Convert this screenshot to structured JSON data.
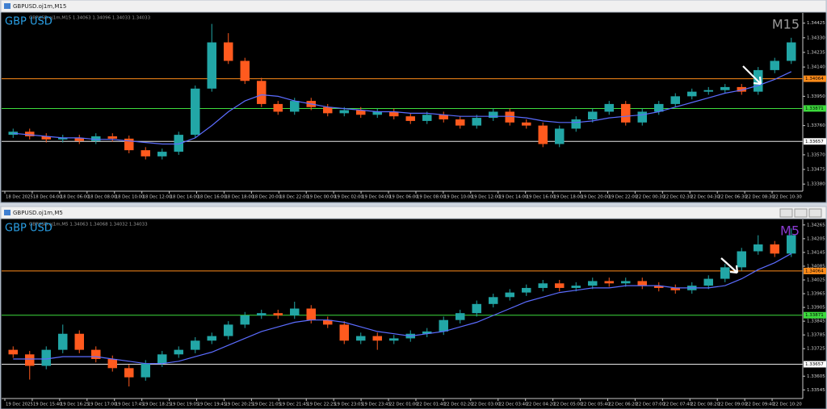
{
  "chart_data": [
    {
      "type": "candlestick",
      "window_title": "GBPUSD.oj1m,M15",
      "info": "GBPUSD.oj1m,M15 1.34063 1.34096 1.34033 1.34033",
      "symbol": "GBP USD",
      "timeframe": "M15",
      "timeframe_color": "#9a9a9a",
      "up_color": "#22a6a6",
      "down_color": "#ff5a1e",
      "ma_color": "#5b6cff",
      "ylim": [
        1.3336,
        1.3446
      ],
      "yticks": [
        1.34425,
        {
          "value": 1.3433,
          "label": "1.34330"
        },
        1.34235,
        {
          "value": 1.3414,
          "label": "1.34140"
        },
        {
          "value": 1.3395,
          "label": "1.33950"
        },
        {
          "value": 1.3376,
          "label": "1.33760"
        },
        {
          "value": 1.3357,
          "label": "1.33570"
        },
        1.33475,
        {
          "value": 1.3338,
          "label": "1.33380"
        }
      ],
      "hlines": [
        {
          "value": 1.34064,
          "color": "#ff8c1a"
        },
        {
          "value": 1.33871,
          "color": "#3ddc3d"
        },
        {
          "value": 1.33657,
          "color": "#e8e8e8"
        }
      ],
      "time_labels": [
        "18 Dec 2025",
        "18 Dec 04:00",
        "18 Dec 06:00",
        "18 Dec 08:00",
        "18 Dec 10:00",
        "18 Dec 12:00",
        "18 Dec 14:00",
        "18 Dec 16:00",
        "18 Dec 18:00",
        "18 Dec 20:00",
        "18 Dec 22:00",
        "19 Dec 00:00",
        "19 Dec 02:00",
        "19 Dec 04:00",
        "19 Dec 06:00",
        "19 Dec 08:00",
        "19 Dec 10:00",
        "19 Dec 12:00",
        "19 Dec 14:00",
        "19 Dec 16:00",
        "19 Dec 18:00",
        "19 Dec 20:00",
        "19 Dec 22:00",
        "22 Dec 00:30",
        "22 Dec 02:30",
        "22 Dec 04:30",
        "22 Dec 06:30",
        "22 Dec 08:30",
        "22 Dec 10:30"
      ],
      "open": [
        1.337,
        1.3372,
        1.3369,
        1.3367,
        1.3368,
        1.3366,
        1.3369,
        1.33675,
        1.336,
        1.3356,
        1.3359,
        1.337,
        1.34,
        1.343,
        1.3418,
        1.3405,
        1.339,
        1.3385,
        1.3392,
        1.3388,
        1.3384,
        1.3386,
        1.3383,
        1.3385,
        1.3382,
        1.3379,
        1.3383,
        1.338,
        1.3376,
        1.3381,
        1.3385,
        1.3378,
        1.3376,
        1.3364,
        1.3374,
        1.338,
        1.3385,
        1.339,
        1.3378,
        1.3385,
        1.339,
        1.3395,
        1.3398,
        1.3399,
        1.3401,
        1.3398,
        1.3412,
        1.3418
      ],
      "high": [
        1.3374,
        1.3374,
        1.3371,
        1.337,
        1.337,
        1.3371,
        1.3371,
        1.33695,
        1.3362,
        1.3361,
        1.3372,
        1.3402,
        1.3442,
        1.3436,
        1.342,
        1.3407,
        1.3392,
        1.3394,
        1.3394,
        1.339,
        1.3388,
        1.3388,
        1.3387,
        1.3387,
        1.3384,
        1.3385,
        1.3385,
        1.3382,
        1.3383,
        1.3387,
        1.3387,
        1.338,
        1.3378,
        1.3376,
        1.3382,
        1.3387,
        1.3392,
        1.3392,
        1.3387,
        1.3392,
        1.3397,
        1.34,
        1.3401,
        1.3403,
        1.3403,
        1.3414,
        1.342,
        1.3433
      ],
      "low": [
        1.3368,
        1.3367,
        1.3365,
        1.3365,
        1.3364,
        1.3364,
        1.33655,
        1.3358,
        1.3354,
        1.3354,
        1.3357,
        1.3368,
        1.3398,
        1.3416,
        1.3403,
        1.3388,
        1.3383,
        1.3383,
        1.3386,
        1.3382,
        1.3382,
        1.3381,
        1.3381,
        1.338,
        1.3377,
        1.3377,
        1.3378,
        1.3374,
        1.3374,
        1.3379,
        1.3376,
        1.3374,
        1.3362,
        1.3362,
        1.3372,
        1.3378,
        1.3383,
        1.3376,
        1.3376,
        1.3383,
        1.3388,
        1.3393,
        1.3396,
        1.3397,
        1.3396,
        1.3396,
        1.341,
        1.3416
      ],
      "close": [
        1.3372,
        1.3369,
        1.3367,
        1.3368,
        1.3366,
        1.3369,
        1.33675,
        1.336,
        1.3356,
        1.3359,
        1.337,
        1.34,
        1.343,
        1.3418,
        1.3405,
        1.339,
        1.3385,
        1.3392,
        1.3388,
        1.3384,
        1.3386,
        1.3383,
        1.3385,
        1.3382,
        1.3379,
        1.3383,
        1.338,
        1.3376,
        1.3381,
        1.3385,
        1.3378,
        1.3376,
        1.3364,
        1.3374,
        1.338,
        1.3385,
        1.339,
        1.3378,
        1.3385,
        1.339,
        1.3395,
        1.3398,
        1.3399,
        1.3401,
        1.3398,
        1.3412,
        1.3418,
        1.343
      ],
      "moving_average": [
        1.3371,
        1.337,
        1.3369,
        1.3368,
        1.3368,
        1.3367,
        1.3367,
        1.3366,
        1.3365,
        1.3364,
        1.3364,
        1.3368,
        1.3376,
        1.3385,
        1.3392,
        1.3396,
        1.3395,
        1.3392,
        1.339,
        1.3388,
        1.3387,
        1.3386,
        1.3385,
        1.3385,
        1.3384,
        1.3384,
        1.3383,
        1.3382,
        1.3382,
        1.3382,
        1.3382,
        1.3381,
        1.3379,
        1.3378,
        1.3378,
        1.3379,
        1.3381,
        1.3382,
        1.3383,
        1.3385,
        1.3388,
        1.3391,
        1.3394,
        1.3397,
        1.3399,
        1.3402,
        1.3406,
        1.3411
      ]
    },
    {
      "type": "candlestick",
      "window_title": "GBPUSD.oj1m,M5",
      "info": "GBPUSD.oj1m,M5 1.34063 1.34068 1.34032 1.34033",
      "symbol": "GBP USD",
      "timeframe": "M5",
      "timeframe_color": "#8a3ad0",
      "up_color": "#22a6a6",
      "down_color": "#ff5a1e",
      "ma_color": "#5b6cff",
      "ylim": [
        1.33525,
        1.34275
      ],
      "yticks": [
        1.34265,
        1.34205,
        1.34145,
        1.34085,
        1.34025,
        1.33965,
        1.33905,
        1.33845,
        1.33785,
        1.33725,
        1.33605,
        1.33545
      ],
      "hlines": [
        {
          "value": 1.34064,
          "color": "#ff8c1a"
        },
        {
          "value": 1.33871,
          "color": "#3ddc3d"
        },
        {
          "value": 1.33657,
          "color": "#e8e8e8"
        }
      ],
      "time_labels": [
        "19 Dec 2025",
        "19 Dec 15:40",
        "19 Dec 16:25",
        "19 Dec 17:00",
        "19 Dec 17:45",
        "19 Dec 18:25",
        "19 Dec 19:05",
        "19 Dec 19:45",
        "19 Dec 20:25",
        "19 Dec 21:05",
        "19 Dec 21:45",
        "19 Dec 22:25",
        "19 Dec 23:05",
        "19 Dec 23:45",
        "22 Dec 01:00",
        "22 Dec 01:40",
        "22 Dec 02:20",
        "22 Dec 03:00",
        "22 Dec 03:40",
        "22 Dec 04:20",
        "22 Dec 05:00",
        "22 Dec 05:40",
        "22 Dec 06:20",
        "22 Dec 07:00",
        "22 Dec 07:40",
        "22 Dec 08:20",
        "22 Dec 09:00",
        "22 Dec 09:40",
        "22 Dec 10:20"
      ],
      "open": [
        1.3372,
        1.337,
        1.3365,
        1.3372,
        1.3379,
        1.3372,
        1.3368,
        1.3364,
        1.336,
        1.3366,
        1.337,
        1.3372,
        1.3376,
        1.3378,
        1.3383,
        1.3387,
        1.3388,
        1.3387,
        1.339,
        1.3385,
        1.3383,
        1.3376,
        1.3378,
        1.3376,
        1.3377,
        1.3379,
        1.338,
        1.3385,
        1.3388,
        1.3392,
        1.3395,
        1.3397,
        1.3399,
        1.3401,
        1.3399,
        1.34,
        1.3402,
        1.3401,
        1.3402,
        1.34,
        1.3399,
        1.3398,
        1.34,
        1.3403,
        1.3408,
        1.3415,
        1.3418,
        1.3414
      ],
      "high": [
        1.33735,
        1.33715,
        1.33735,
        1.3383,
        1.33805,
        1.33735,
        1.33695,
        1.33655,
        1.33675,
        1.33715,
        1.33735,
        1.33775,
        1.33795,
        1.33845,
        1.33885,
        1.33895,
        1.33895,
        1.3393,
        1.33915,
        1.33865,
        1.33845,
        1.33795,
        1.33795,
        1.33785,
        1.33805,
        1.33815,
        1.33865,
        1.33895,
        1.33935,
        1.33965,
        1.33985,
        1.34005,
        1.34025,
        1.34025,
        1.34015,
        1.34035,
        1.34035,
        1.34035,
        1.34035,
        1.34015,
        1.34005,
        1.34015,
        1.34045,
        1.34095,
        1.34165,
        1.3422,
        1.34195,
        1.3425
      ],
      "low": [
        1.33685,
        1.3359,
        1.33635,
        1.33705,
        1.33705,
        1.33665,
        1.33625,
        1.3356,
        1.33585,
        1.33645,
        1.33685,
        1.33705,
        1.33745,
        1.33765,
        1.33815,
        1.33855,
        1.33855,
        1.33855,
        1.33835,
        1.33815,
        1.33745,
        1.33745,
        1.3372,
        1.33745,
        1.33755,
        1.33775,
        1.33785,
        1.33835,
        1.33865,
        1.33905,
        1.33935,
        1.33955,
        1.33975,
        1.33975,
        1.33975,
        1.33985,
        1.33995,
        1.33995,
        1.33985,
        1.33975,
        1.33965,
        1.33965,
        1.33985,
        1.34015,
        1.34065,
        1.34135,
        1.34125,
        1.34125
      ],
      "close": [
        1.337,
        1.3365,
        1.3372,
        1.3379,
        1.3372,
        1.3368,
        1.3364,
        1.336,
        1.3366,
        1.337,
        1.3372,
        1.3376,
        1.3378,
        1.3383,
        1.3387,
        1.3388,
        1.3387,
        1.339,
        1.3385,
        1.3383,
        1.3376,
        1.3378,
        1.3376,
        1.3377,
        1.3379,
        1.338,
        1.3385,
        1.3388,
        1.3392,
        1.3395,
        1.3397,
        1.3399,
        1.3401,
        1.3399,
        1.34,
        1.3402,
        1.3401,
        1.3402,
        1.34,
        1.3399,
        1.3398,
        1.34,
        1.3403,
        1.3408,
        1.3415,
        1.3418,
        1.3414,
        1.3422
      ],
      "moving_average": [
        1.3368,
        1.3368,
        1.3368,
        1.3369,
        1.3369,
        1.3369,
        1.3368,
        1.3367,
        1.3366,
        1.3366,
        1.3367,
        1.3369,
        1.3371,
        1.3374,
        1.3377,
        1.338,
        1.3382,
        1.3384,
        1.3385,
        1.3385,
        1.3384,
        1.3382,
        1.338,
        1.3379,
        1.3378,
        1.3379,
        1.338,
        1.3382,
        1.3384,
        1.3387,
        1.339,
        1.3393,
        1.3395,
        1.3397,
        1.3398,
        1.3399,
        1.3399,
        1.34,
        1.34,
        1.34,
        1.3399,
        1.3399,
        1.3399,
        1.34,
        1.3403,
        1.3407,
        1.341,
        1.3414
      ]
    }
  ]
}
